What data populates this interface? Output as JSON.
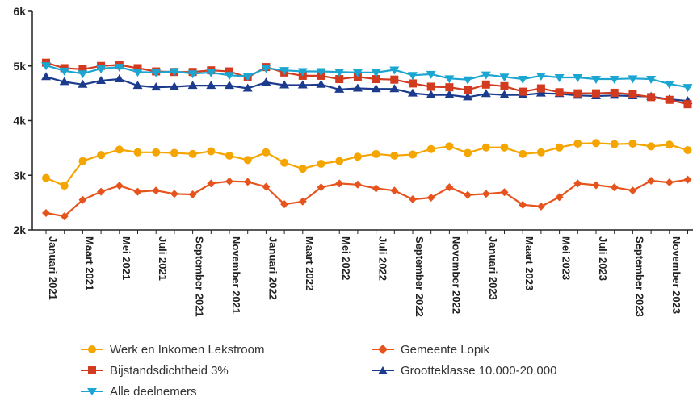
{
  "chart_data": {
    "type": "line",
    "title": "",
    "xlabel": "",
    "ylabel": "",
    "ylim": [
      2000,
      6000
    ],
    "yticks": [
      {
        "value": 2000,
        "label": "2k"
      },
      {
        "value": 3000,
        "label": "3k"
      },
      {
        "value": 4000,
        "label": "4k"
      },
      {
        "value": 5000,
        "label": "5k"
      },
      {
        "value": 6000,
        "label": "6k"
      }
    ],
    "grid": false,
    "legend_position": "bottom",
    "x": [
      "Jan 2021",
      "Feb 2021",
      "Mrt 2021",
      "Apr 2021",
      "Mei 2021",
      "Jun 2021",
      "Jul 2021",
      "Aug 2021",
      "Sep 2021",
      "Okt 2021",
      "Nov 2021",
      "Dec 2021",
      "Jan 2022",
      "Feb 2022",
      "Mrt 2022",
      "Apr 2022",
      "Mei 2022",
      "Jun 2022",
      "Jul 2022",
      "Aug 2022",
      "Sep 2022",
      "Okt 2022",
      "Nov 2022",
      "Dec 2022",
      "Jan 2023",
      "Feb 2023",
      "Mrt 2023",
      "Apr 2023",
      "Mei 2023",
      "Jun 2023",
      "Jul 2023",
      "Aug 2023",
      "Sep 2023",
      "Okt 2023",
      "Nov 2023",
      "Dec 2023"
    ],
    "tick_labels": [
      {
        "index": 0,
        "label": "Januari 2021"
      },
      {
        "index": 2,
        "label": "Maart 2021"
      },
      {
        "index": 4,
        "label": "Mei 2021"
      },
      {
        "index": 6,
        "label": "Juli 2021"
      },
      {
        "index": 8,
        "label": "September 2021"
      },
      {
        "index": 10,
        "label": "November 2021"
      },
      {
        "index": 12,
        "label": "Januari 2022"
      },
      {
        "index": 14,
        "label": "Maart 2022"
      },
      {
        "index": 16,
        "label": "Mei 2022"
      },
      {
        "index": 18,
        "label": "Juli 2022"
      },
      {
        "index": 20,
        "label": "September 2022"
      },
      {
        "index": 22,
        "label": "November 2022"
      },
      {
        "index": 24,
        "label": "Januari 2023"
      },
      {
        "index": 26,
        "label": "Maart 2023"
      },
      {
        "index": 28,
        "label": "Mei 2023"
      },
      {
        "index": 30,
        "label": "Juli 2023"
      },
      {
        "index": 32,
        "label": "September 2023"
      },
      {
        "index": 34,
        "label": "November 2023"
      }
    ],
    "series": [
      {
        "name": "Werk en Inkomen Lekstroom",
        "color": "#f5a500",
        "marker": "circle",
        "values": [
          2950,
          2810,
          3260,
          3370,
          3470,
          3420,
          3420,
          3410,
          3390,
          3440,
          3360,
          3280,
          3420,
          3230,
          3120,
          3210,
          3260,
          3340,
          3390,
          3360,
          3380,
          3480,
          3530,
          3410,
          3510,
          3510,
          3390,
          3420,
          3510,
          3580,
          3590,
          3570,
          3580,
          3530,
          3560,
          3460
        ]
      },
      {
        "name": "Gemeente Lopik",
        "color": "#e6531d",
        "marker": "diamond",
        "values": [
          2310,
          2250,
          2550,
          2700,
          2810,
          2700,
          2720,
          2660,
          2650,
          2850,
          2890,
          2880,
          2790,
          2470,
          2520,
          2780,
          2850,
          2830,
          2760,
          2720,
          2560,
          2590,
          2780,
          2640,
          2660,
          2690,
          2460,
          2430,
          2600,
          2850,
          2820,
          2780,
          2720,
          2900,
          2870,
          2920
        ]
      },
      {
        "name": "Bijstandsdichtheid 3%",
        "color": "#d23b1f",
        "marker": "square",
        "values": [
          5060,
          4960,
          4940,
          5000,
          5020,
          4960,
          4900,
          4890,
          4890,
          4920,
          4900,
          4790,
          4980,
          4880,
          4820,
          4820,
          4760,
          4800,
          4760,
          4750,
          4680,
          4620,
          4610,
          4560,
          4660,
          4630,
          4530,
          4590,
          4520,
          4500,
          4500,
          4510,
          4480,
          4430,
          4380,
          4300
        ]
      },
      {
        "name": "Grootteklasse 10.000-20.000",
        "color": "#1c3b8c",
        "marker": "triangle-up",
        "values": [
          4800,
          4710,
          4660,
          4730,
          4760,
          4640,
          4610,
          4620,
          4640,
          4640,
          4640,
          4590,
          4700,
          4650,
          4650,
          4660,
          4570,
          4590,
          4580,
          4580,
          4500,
          4470,
          4470,
          4430,
          4490,
          4470,
          4470,
          4500,
          4490,
          4460,
          4450,
          4460,
          4450,
          4440,
          4390,
          4360
        ]
      },
      {
        "name": "Alle deelnemers",
        "color": "#1aa6d1",
        "marker": "triangle-down",
        "values": [
          5010,
          4910,
          4860,
          4950,
          4980,
          4890,
          4880,
          4900,
          4860,
          4880,
          4830,
          4810,
          4960,
          4920,
          4900,
          4900,
          4890,
          4880,
          4880,
          4930,
          4830,
          4850,
          4770,
          4750,
          4840,
          4800,
          4760,
          4820,
          4790,
          4790,
          4760,
          4760,
          4770,
          4760,
          4670,
          4610
        ]
      }
    ]
  }
}
